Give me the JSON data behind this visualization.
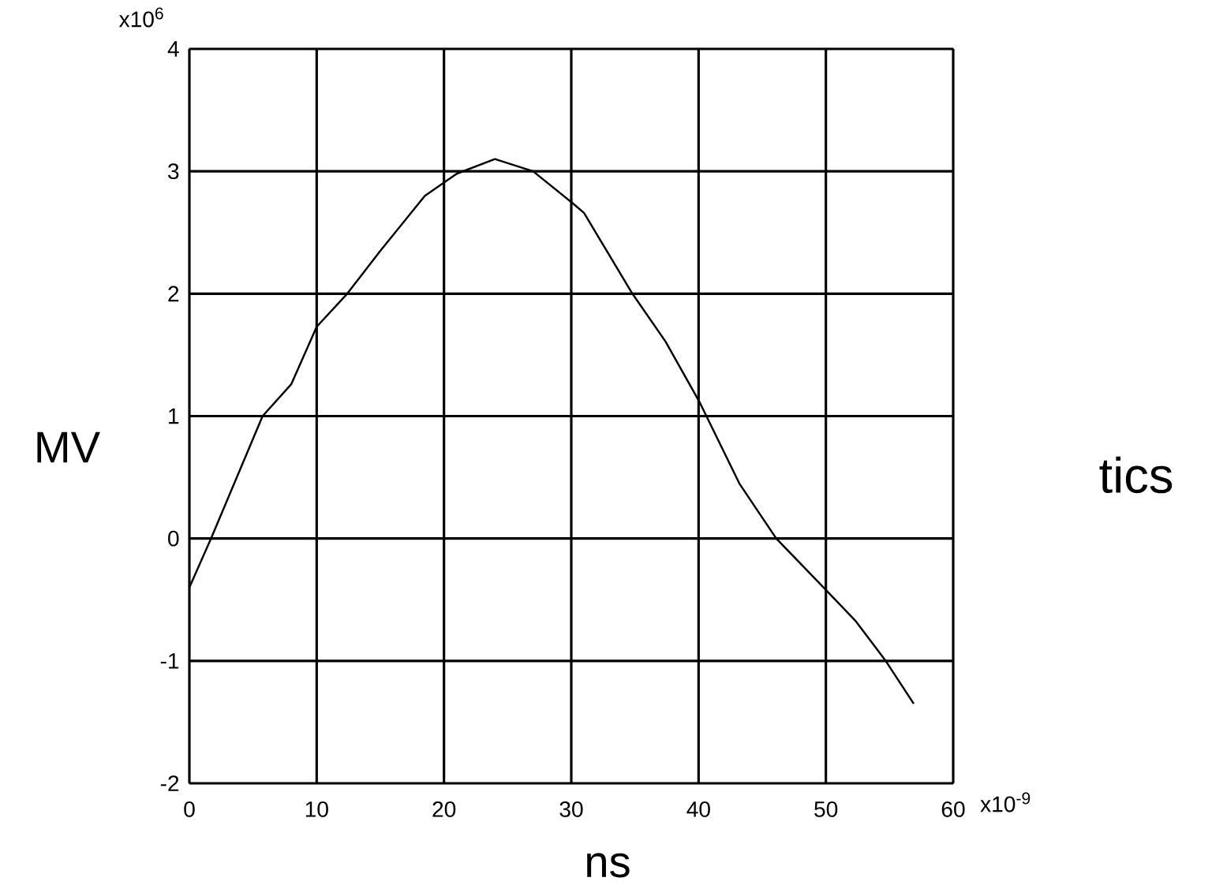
{
  "chart_data": {
    "type": "line",
    "xlabel": "ns",
    "ylabel": "MV",
    "annotations": [
      "x10$^{6}$",
      "x10$^{-9}$",
      "tics"
    ],
    "x": [
      0,
      1.7,
      5.75,
      8,
      10,
      12.4,
      15,
      18.5,
      21,
      24,
      27,
      30.1,
      31,
      34.8,
      37.4,
      40.1,
      43.2,
      46.1,
      50,
      52.3,
      54.7,
      56.9
    ],
    "series": [
      {
        "color": "#000000",
        "values": [
          -0.4,
          0,
          1.0,
          1.26,
          1.73,
          2.0,
          2.35,
          2.8,
          2.98,
          3.1,
          3.0,
          2.74,
          2.66,
          2.0,
          1.61,
          1.11,
          0.45,
          0,
          -0.42,
          -0.67,
          -1.0,
          -1.35
        ]
      }
    ],
    "xlim": [
      0,
      60
    ],
    "ylim": [
      -2,
      4
    ],
    "xticks": [
      0,
      10,
      20,
      30,
      40,
      50,
      60
    ],
    "yticks": [
      -2,
      -1,
      0,
      1,
      2,
      3,
      4
    ],
    "grid": true,
    "marker": "none",
    "line_style": "solid"
  }
}
